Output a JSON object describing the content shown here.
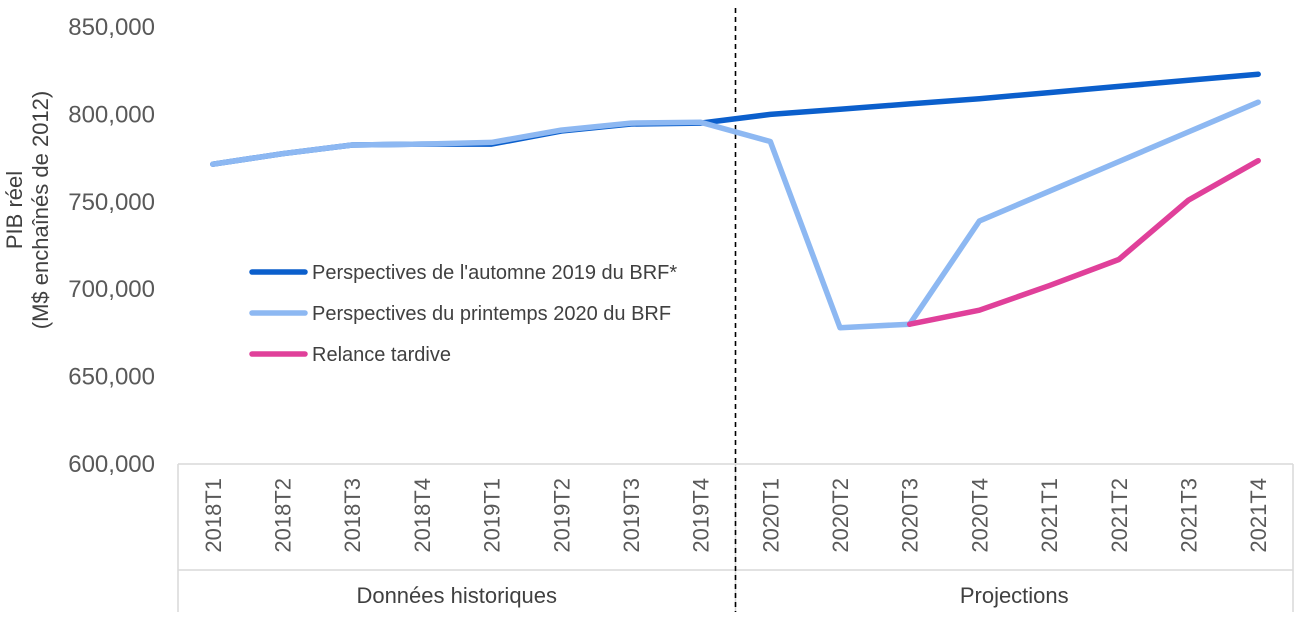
{
  "chart_data": {
    "type": "line",
    "ylabel_line1": "PIB réel",
    "ylabel_line2": "(M$ enchaînés de 2012)",
    "ylim": [
      600000,
      850000
    ],
    "y_ticks": [
      "600,000",
      "650,000",
      "700,000",
      "750,000",
      "800,000",
      "850,000"
    ],
    "y_tick_values": [
      600000,
      650000,
      700000,
      750000,
      800000,
      850000
    ],
    "categories": [
      "2018T1",
      "2018T2",
      "2018T3",
      "2018T4",
      "2019T1",
      "2019T2",
      "2019T3",
      "2019T4",
      "2020T1",
      "2020T2",
      "2020T3",
      "2020T4",
      "2021T1",
      "2021T2",
      "2021T3",
      "2021T4"
    ],
    "groups": [
      {
        "label": "Données historiques",
        "from": 0,
        "to": 7
      },
      {
        "label": "Projections",
        "from": 8,
        "to": 15
      }
    ],
    "divider_after_index": 7,
    "grid": false,
    "legend_position": "center-left",
    "series": [
      {
        "name": "Perspectives de l'automne 2019 du BRF*",
        "color": "#0b5fcc",
        "values": [
          771500,
          777500,
          782500,
          783000,
          783000,
          790500,
          794500,
          795000,
          800000,
          803000,
          806000,
          809000,
          812500,
          816000,
          819500,
          823000
        ]
      },
      {
        "name": "Perspectives du printemps 2020 du BRF",
        "color": "#8db8f2",
        "values": [
          771500,
          777500,
          782500,
          783000,
          784000,
          791000,
          795000,
          795500,
          784500,
          678000,
          680000,
          739000,
          756000,
          773000,
          790000,
          807000
        ]
      },
      {
        "name": "Relance tardive",
        "color": "#e0409a",
        "values": [
          null,
          null,
          null,
          null,
          null,
          null,
          null,
          null,
          null,
          null,
          680000,
          688000,
          702000,
          717000,
          751000,
          773500
        ]
      }
    ]
  }
}
